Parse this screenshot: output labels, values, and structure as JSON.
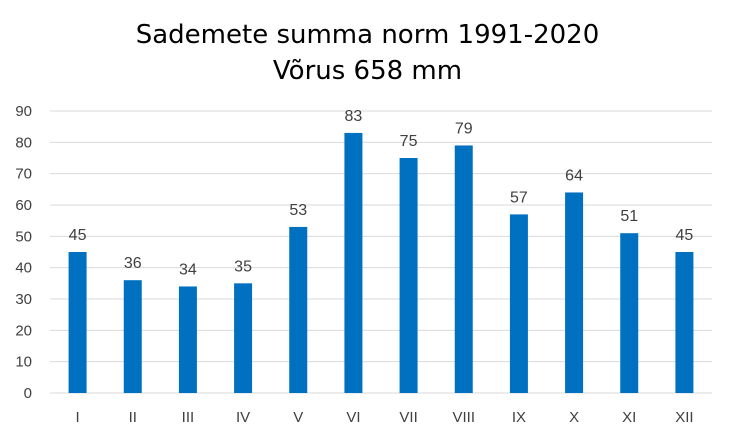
{
  "chart_data": {
    "type": "bar",
    "title": "Sademete summa norm 1991-2020",
    "subtitle": "Võrus 658 mm",
    "categories": [
      "I",
      "II",
      "III",
      "IV",
      "V",
      "VI",
      "VII",
      "VIII",
      "IX",
      "X",
      "XI",
      "XII"
    ],
    "values": [
      45,
      36,
      34,
      35,
      53,
      83,
      75,
      79,
      57,
      64,
      51,
      45
    ],
    "ylim": [
      0,
      90
    ],
    "yticks": [
      0,
      10,
      20,
      30,
      40,
      50,
      60,
      70,
      80,
      90
    ],
    "xlabel": "",
    "ylabel": "",
    "grid": true,
    "bar_color": "#0070C0",
    "grid_color": "#D9D9D9",
    "data_labels": true
  }
}
